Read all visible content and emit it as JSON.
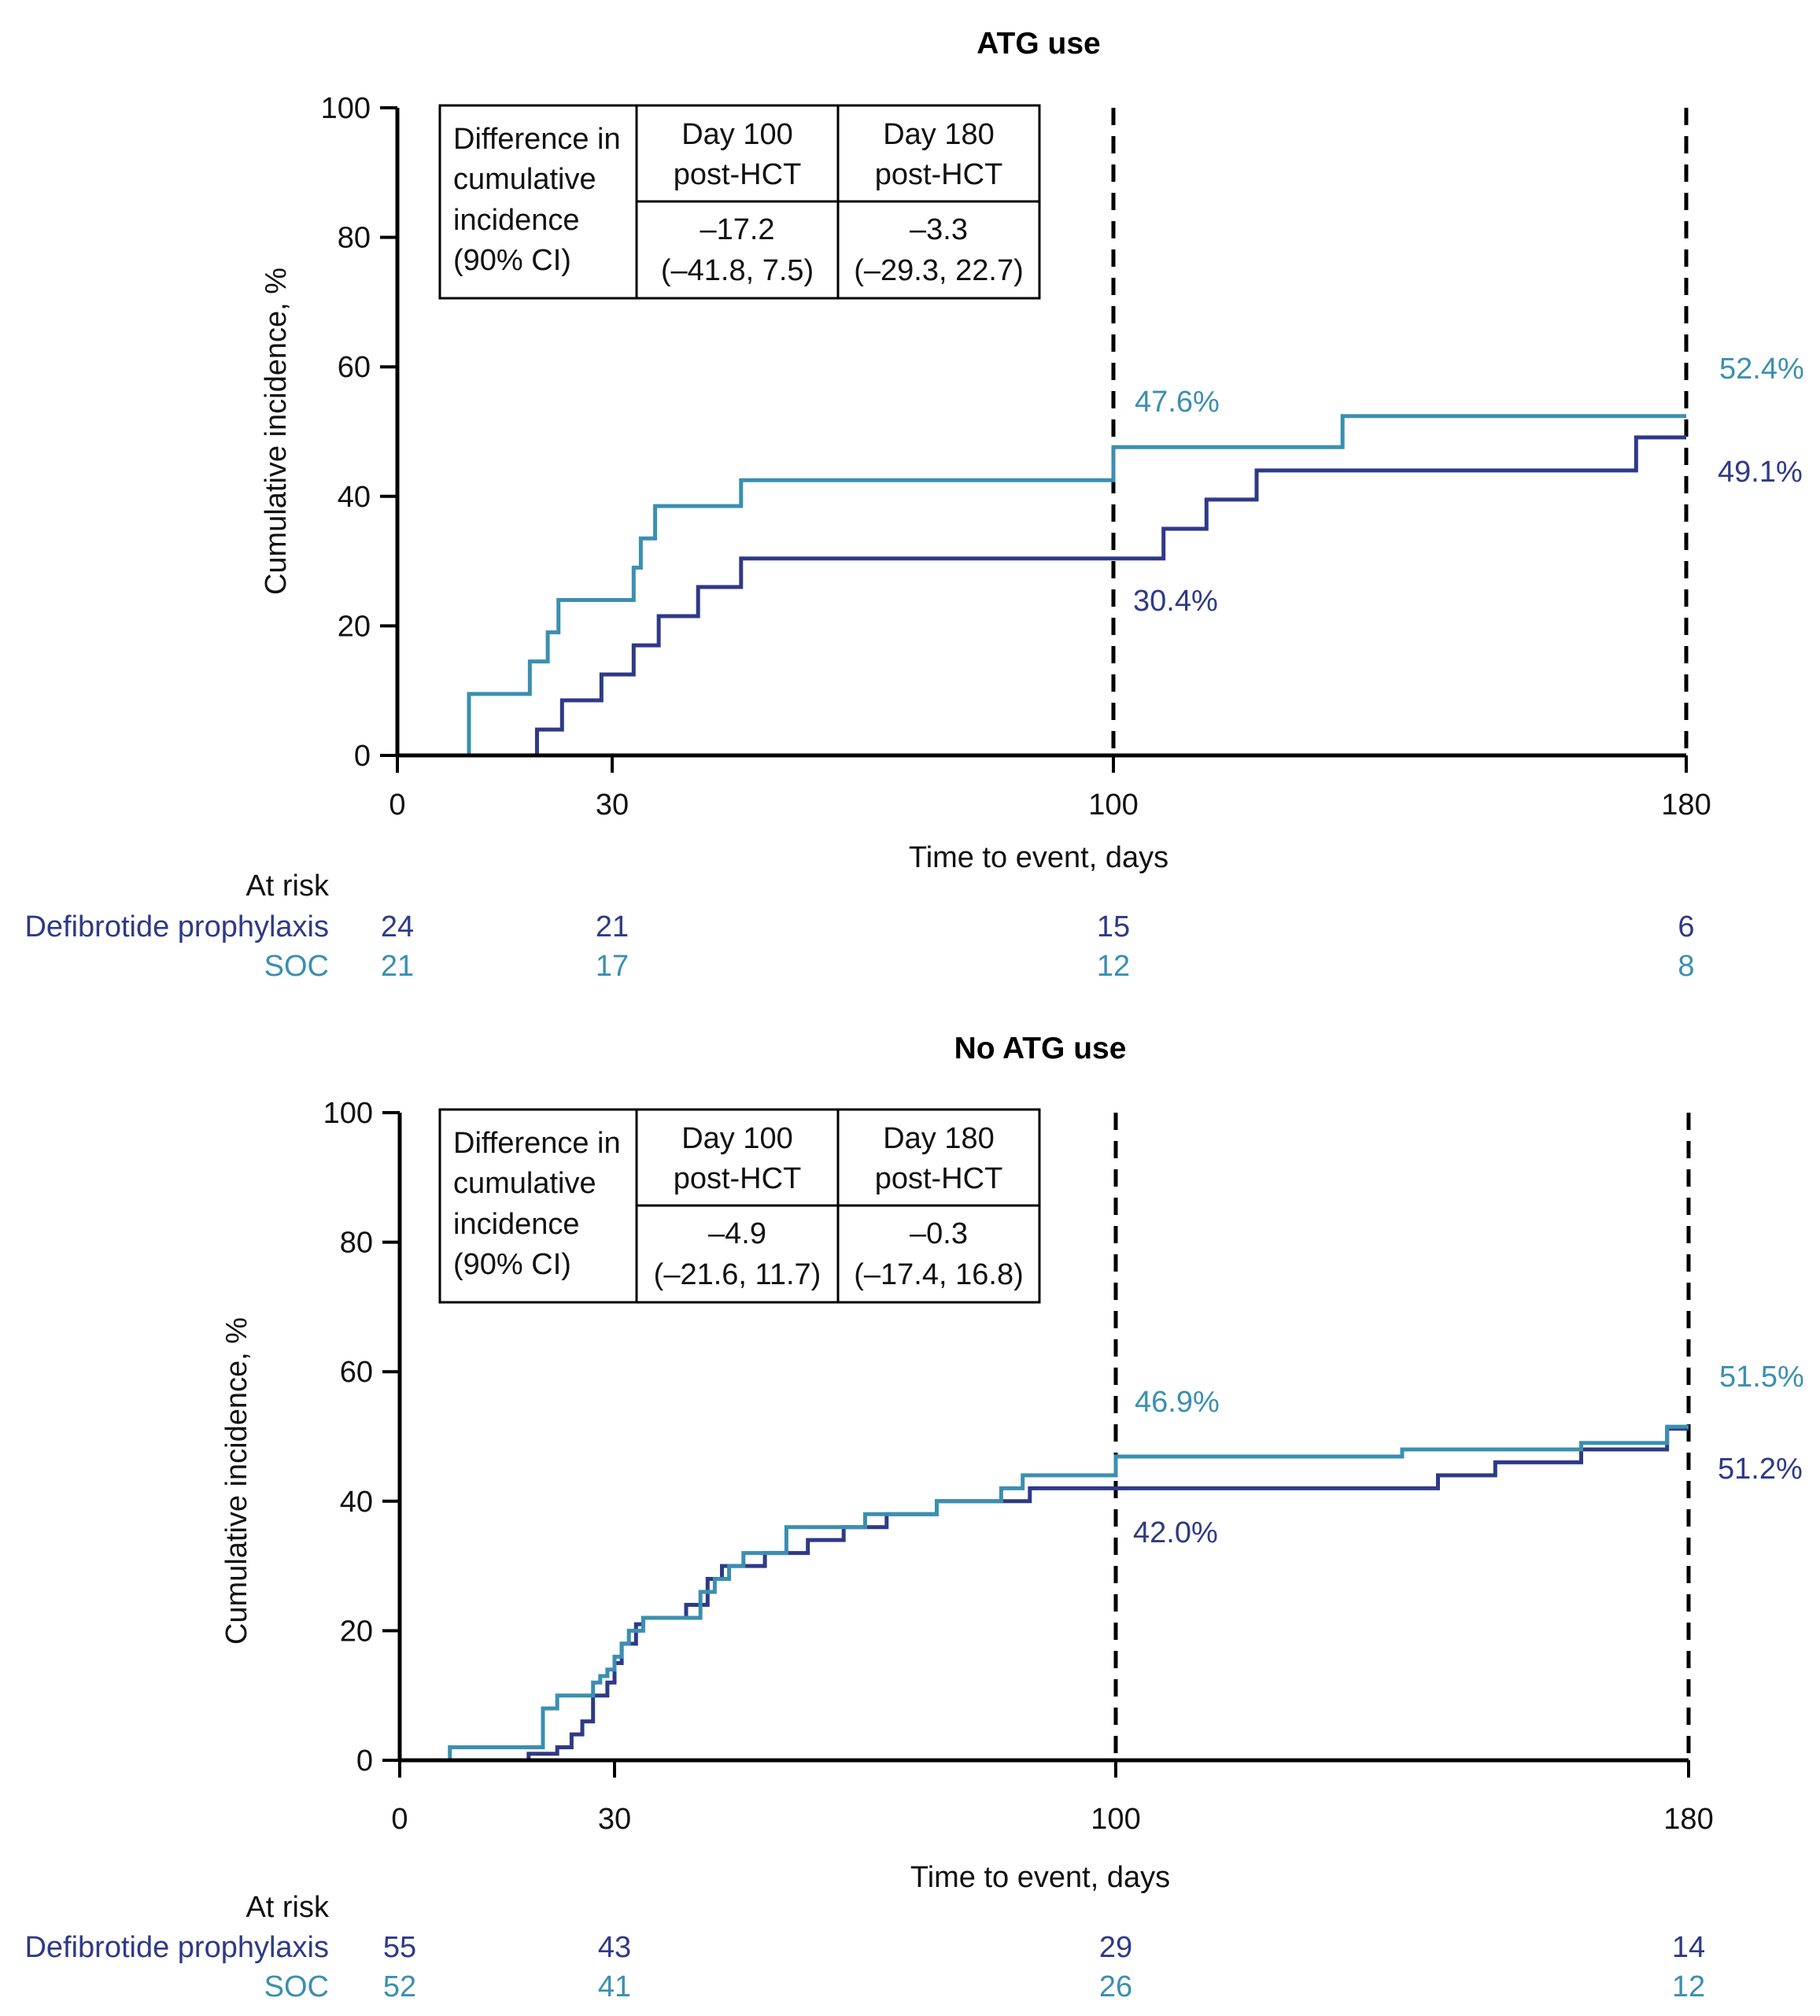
{
  "colors": {
    "defibrotide": "#2E3A87",
    "soc": "#3B8FB0",
    "axis": "#000000",
    "refline": "#000000"
  },
  "chart_data": [
    {
      "type": "line",
      "step": true,
      "title": "ATG use",
      "xlabel": "Time to event, days",
      "ylabel": "Cumulative incidence, %",
      "xlim": [
        0,
        180
      ],
      "ylim": [
        0,
        100
      ],
      "xticks": [
        "0",
        "30",
        "100",
        "180"
      ],
      "yticks": [
        "0",
        "20",
        "40",
        "60",
        "80",
        "100"
      ],
      "ref_lines_x": [
        100,
        180
      ],
      "series": [
        {
          "name": "Defibrotide prophylaxis",
          "color": "#2E3A87",
          "x": [
            0,
            19.5,
            23,
            28.5,
            33,
            36.5,
            42,
            48,
            100,
            107,
            113,
            120,
            140,
            173,
            180
          ],
          "y": [
            0,
            4,
            8.5,
            12.5,
            17,
            21.5,
            26,
            30.4,
            30.4,
            35,
            39.5,
            44,
            44,
            49.1,
            49.1
          ]
        },
        {
          "name": "SOC",
          "color": "#3B8FB0",
          "x": [
            0,
            10,
            18.5,
            21,
            22.5,
            33,
            34,
            36,
            48,
            100,
            132,
            180
          ],
          "y": [
            0,
            9.5,
            14.5,
            19,
            24,
            29,
            33.5,
            38.5,
            42.5,
            47.6,
            52.4,
            52.4
          ]
        }
      ],
      "annotations": [
        {
          "text": "47.6%",
          "series": "SOC",
          "x": 100,
          "y": 47.6
        },
        {
          "text": "30.4%",
          "series": "Defibrotide prophylaxis",
          "x": 100,
          "y": 30.4
        },
        {
          "text": "52.4%",
          "series": "SOC",
          "x": 180,
          "y": 52.4
        },
        {
          "text": "49.1%",
          "series": "Defibrotide prophylaxis",
          "x": 180,
          "y": 49.1
        }
      ],
      "table": {
        "row_header": [
          "Difference in",
          "cumulative",
          "incidence",
          "(90% CI)"
        ],
        "col1_header": [
          "Day 100",
          "post-HCT"
        ],
        "col2_header": [
          "Day 180",
          "post-HCT"
        ],
        "col1_value": [
          "–17.2",
          "(–41.8, 7.5)"
        ],
        "col2_value": [
          "–3.3",
          "(–29.3, 22.7)"
        ]
      },
      "at_risk": {
        "label": "At risk",
        "x": [
          0,
          30,
          100,
          180
        ],
        "rows": [
          {
            "name": "Defibrotide prophylaxis",
            "values": [
              "24",
              "21",
              "15",
              "6"
            ]
          },
          {
            "name": "SOC",
            "values": [
              "21",
              "17",
              "12",
              "8"
            ]
          }
        ]
      }
    },
    {
      "type": "line",
      "step": true,
      "title": "No ATG use",
      "xlabel": "Time to event, days",
      "ylabel": "Cumulative incidence, %",
      "xlim": [
        0,
        180
      ],
      "ylim": [
        0,
        100
      ],
      "xticks": [
        "0",
        "30",
        "100",
        "180"
      ],
      "yticks": [
        "0",
        "20",
        "40",
        "60",
        "80",
        "100"
      ],
      "ref_lines_x": [
        100,
        180
      ],
      "series": [
        {
          "name": "Defibrotide prophylaxis",
          "color": "#2E3A87",
          "x": [
            0,
            18,
            22,
            24,
            25.5,
            27,
            29,
            30,
            31,
            33,
            34,
            40,
            43,
            45,
            51,
            57,
            62,
            68,
            75,
            88,
            91,
            100,
            145,
            153,
            165,
            177,
            180
          ],
          "y": [
            0,
            1,
            2,
            4,
            6,
            10,
            12,
            15,
            18,
            21,
            22,
            24,
            28,
            30,
            32,
            34,
            36,
            38,
            40,
            42,
            42,
            42,
            44,
            46,
            48,
            51.2,
            51.2
          ],
          "comment": ""
        },
        {
          "name": "SOC",
          "color": "#3B8FB0",
          "x": [
            0,
            7,
            20,
            22,
            23.5,
            27,
            28,
            29,
            30,
            31,
            32,
            34,
            42,
            44,
            46,
            48,
            54,
            65,
            75,
            84,
            87,
            100,
            140,
            165,
            177,
            180
          ],
          "y": [
            0,
            2,
            8,
            10,
            10,
            12,
            13,
            14,
            16,
            18,
            20,
            22,
            26,
            28,
            30,
            32,
            36,
            38,
            40,
            42,
            44,
            46.9,
            48,
            49,
            51.5,
            51.5
          ]
        }
      ],
      "annotations": [
        {
          "text": "46.9%",
          "series": "SOC",
          "x": 100,
          "y": 46.9
        },
        {
          "text": "42.0%",
          "series": "Defibrotide prophylaxis",
          "x": 100,
          "y": 42.0
        },
        {
          "text": "51.5%",
          "series": "SOC",
          "x": 180,
          "y": 51.5
        },
        {
          "text": "51.2%",
          "series": "Defibrotide prophylaxis",
          "x": 180,
          "y": 51.2
        }
      ],
      "table": {
        "row_header": [
          "Difference in",
          "cumulative",
          "incidence",
          "(90% CI)"
        ],
        "col1_header": [
          "Day 100",
          "post-HCT"
        ],
        "col2_header": [
          "Day 180",
          "post-HCT"
        ],
        "col1_value": [
          "–4.9",
          "(–21.6, 11.7)"
        ],
        "col2_value": [
          "–0.3",
          "(–17.4, 16.8)"
        ]
      },
      "at_risk": {
        "label": "At risk",
        "x": [
          0,
          30,
          100,
          180
        ],
        "rows": [
          {
            "name": "Defibrotide prophylaxis",
            "values": [
              "55",
              "43",
              "29",
              "14"
            ]
          },
          {
            "name": "SOC",
            "values": [
              "52",
              "41",
              "26",
              "12"
            ]
          }
        ]
      }
    }
  ]
}
